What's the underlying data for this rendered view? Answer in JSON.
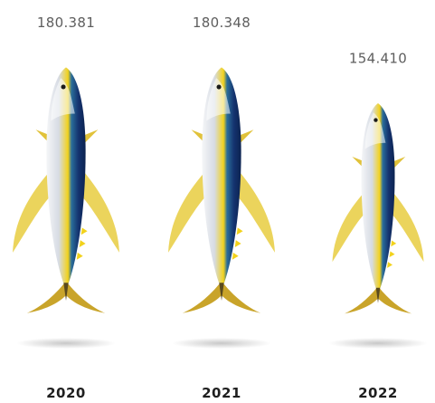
{
  "chart_data": {
    "type": "bar",
    "categories": [
      "2020",
      "2021",
      "2022"
    ],
    "values": [
      180.381,
      180.348,
      154.41
    ],
    "value_labels": [
      "180.381",
      "180.348",
      "154.410"
    ],
    "title": "",
    "xlabel": "",
    "ylabel": "",
    "ylim": [
      0,
      180.381
    ],
    "grid": false,
    "legend": "none",
    "mark": "yellowfin-tuna-icon"
  },
  "colors": {
    "body_silver": "#dfe3ea",
    "back_blue": "#14326e",
    "stripe_yellow": "#f2d21c",
    "fin_yellow": "#e9cf4a",
    "label_gray": "#5e5e5e",
    "year_dark": "#1f1f1f"
  }
}
